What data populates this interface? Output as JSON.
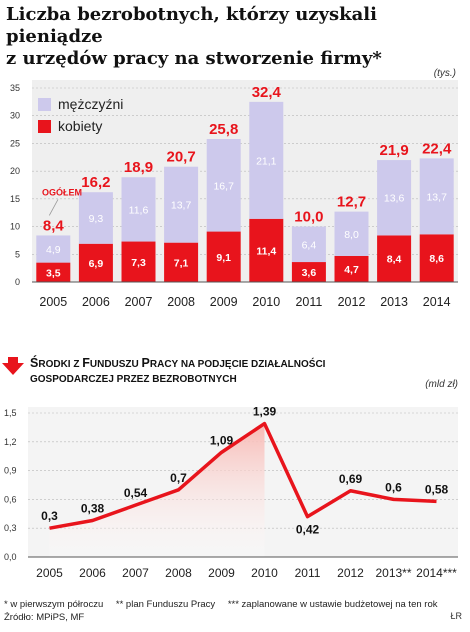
{
  "title_lines": [
    "Liczba bezrobotnych, którzy uzyskali pieniądze",
    "z urzędów pracy na stworzenie firmy*"
  ],
  "footnotes": [
    "* w pierwszym półroczu",
    "** plan Funduszu Pracy",
    "*** zaplanowane  w ustawie budżetowej na ten rok"
  ],
  "source": "Źródło: MPiPS, MF",
  "credit": "ŁR",
  "chart_data": [
    {
      "type": "bar",
      "stacked": true,
      "title": "",
      "unit": "(tys.)",
      "categories": [
        "2005",
        "2006",
        "2007",
        "2008",
        "2009",
        "2010",
        "2011",
        "2012",
        "2013",
        "2014"
      ],
      "series": [
        {
          "name": "kobiety",
          "color": "#e8141c",
          "values": [
            3.5,
            6.9,
            7.3,
            7.1,
            9.1,
            11.4,
            3.6,
            4.7,
            8.4,
            8.6
          ]
        },
        {
          "name": "mężczyźni",
          "color": "#cdc9ec",
          "values": [
            4.9,
            9.3,
            11.6,
            13.7,
            16.7,
            21.1,
            6.4,
            8.0,
            13.6,
            13.7
          ]
        }
      ],
      "totals_label": "OGÓŁEM",
      "totals": [
        "8,4",
        "16,2",
        "18,9",
        "20,7",
        "25,8",
        "32,4",
        "10,0",
        "12,7",
        "21,9",
        "22,4"
      ],
      "labels_kobiety": [
        "3,5",
        "6,9",
        "7,3",
        "7,1",
        "9,1",
        "11,4",
        "3,6",
        "4,7",
        "8,4",
        "8,6"
      ],
      "labels_mezczyzni": [
        "4,9",
        "9,3",
        "11,6",
        "13,7",
        "16,7",
        "21,1",
        "6,4",
        "8,0",
        "13,6",
        "13,7"
      ],
      "yticks": [
        "0",
        "5",
        "10",
        "15",
        "20",
        "25",
        "30",
        "35"
      ],
      "ylim": [
        0,
        35
      ],
      "grid": true,
      "legend": "top-left",
      "colors": {
        "total": "#e8141c",
        "background": "#efefef"
      }
    },
    {
      "type": "area",
      "title_cap1": "Ś",
      "title_rest1": "rodki z ",
      "title_cap2": "F",
      "title_rest2": "unduszu ",
      "title_cap3": "P",
      "title_rest3": "racy na podjęcie działalności",
      "title_line2": "gospodarczej przez bezrobotnych",
      "unit": "(mld zł)",
      "x": [
        "2005",
        "2006",
        "2007",
        "2008",
        "2009",
        "2010",
        "2011",
        "2012",
        "2013**",
        "2014***"
      ],
      "values": [
        0.3,
        0.38,
        0.54,
        0.7,
        1.09,
        1.39,
        0.42,
        0.69,
        0.6,
        0.58
      ],
      "value_labels": [
        "0,3",
        "0,38",
        "0,54",
        "0,7",
        "1,09",
        "1,39",
        "0,42",
        "0,69",
        "0,6",
        "0,58"
      ],
      "yticks": [
        "0,0",
        "0,3",
        "0,6",
        "0,9",
        "1,2",
        "1,5"
      ],
      "ylim": [
        0,
        1.5
      ],
      "grid": true,
      "colors": {
        "line": "#e8141c",
        "fill": "#f7b9b4",
        "arrow": "#e8141c"
      }
    }
  ]
}
